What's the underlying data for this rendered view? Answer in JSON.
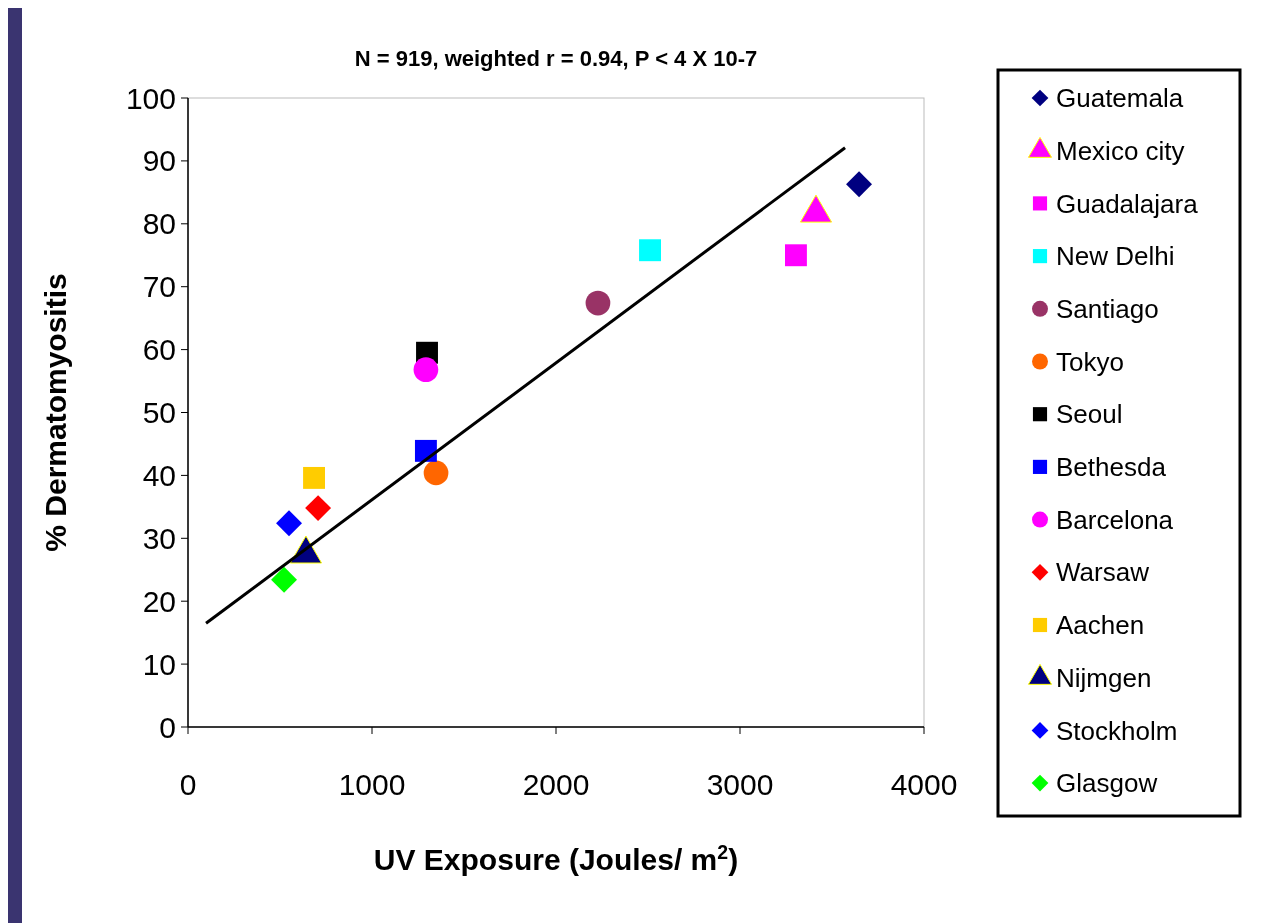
{
  "chart_data": {
    "type": "scatter",
    "title": "N = 919, weighted r = 0.94, P < 4 X 10-7",
    "xlabel": "UV Exposure (Joules/ m$^{2}$)",
    "ylabel": "% Dermatomyositis",
    "xlim": [
      0,
      4000
    ],
    "xticks": [
      0,
      1000,
      2000,
      3000,
      4000
    ],
    "ylim": [
      0,
      100
    ],
    "yticks": [
      0,
      10,
      20,
      30,
      40,
      50,
      60,
      70,
      80,
      90,
      100
    ],
    "grid": false,
    "legend": "right",
    "series": [
      {
        "name": "Guatemala",
        "color": "#000080",
        "marker": "diamond",
        "x": [
          3647
        ],
        "values": [
          86.3
        ]
      },
      {
        "name": "Mexico city",
        "color": "#ff00ff",
        "marker": "triangle",
        "x": [
          3413
        ],
        "values": [
          81.7
        ]
      },
      {
        "name": "Guadalajara",
        "color": "#ff00ff",
        "marker": "square",
        "x": [
          3304
        ],
        "values": [
          75
        ]
      },
      {
        "name": "New Delhi",
        "color": "#00ffff",
        "marker": "square",
        "x": [
          2511
        ],
        "values": [
          75.8
        ]
      },
      {
        "name": "Santiago",
        "color": "#993366",
        "marker": "circle",
        "x": [
          2228
        ],
        "values": [
          67.4
        ]
      },
      {
        "name": "Tokyo",
        "color": "#ff6600",
        "marker": "circle",
        "x": [
          1348
        ],
        "values": [
          40.4
        ]
      },
      {
        "name": "Seoul",
        "color": "#000000",
        "marker": "square",
        "x": [
          1299
        ],
        "values": [
          59.5
        ]
      },
      {
        "name": "Bethesda",
        "color": "#0000ff",
        "marker": "square",
        "x": [
          1293
        ],
        "values": [
          43.9
        ]
      },
      {
        "name": "Barcelona",
        "color": "#ff00ff",
        "marker": "circle",
        "x": [
          1293
        ],
        "values": [
          56.8
        ]
      },
      {
        "name": "Warsaw",
        "color": "#ff0000",
        "marker": "diamond",
        "x": [
          707
        ],
        "values": [
          34.8
        ]
      },
      {
        "name": "Aachen",
        "color": "#ffcc00",
        "marker": "square",
        "x": [
          685
        ],
        "values": [
          39.6
        ]
      },
      {
        "name": "Nijmgen",
        "color": "#000080",
        "marker": "triangle",
        "x": [
          641
        ],
        "values": [
          27.5
        ]
      },
      {
        "name": "Stockholm",
        "color": "#0000ff",
        "marker": "diamond",
        "x": [
          549
        ],
        "values": [
          32.4
        ]
      },
      {
        "name": "Glasgow",
        "color": "#00ff00",
        "marker": "diamond",
        "x": [
          522
        ],
        "values": [
          23.4
        ]
      },
      {
        "type": "line",
        "color": "#000000",
        "marker": "none",
        "x": [
          98,
          3571
        ],
        "values": [
          16.5,
          92.1
        ]
      }
    ]
  }
}
